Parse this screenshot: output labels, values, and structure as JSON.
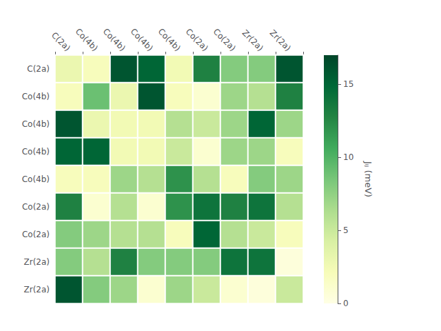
{
  "chart_data": {
    "type": "heatmap",
    "x_categories": [
      "C(2a)",
      "Co(4b)",
      "Co(4b)",
      "Co(4b)",
      "Co(4b)",
      "Co(2a)",
      "Co(2a)",
      "Zr(2a)",
      "Zr(2a)"
    ],
    "y_categories": [
      "C(2a)",
      "Co(4b)",
      "Co(4b)",
      "Co(4b)",
      "Co(4b)",
      "Co(2a)",
      "Co(2a)",
      "Zr(2a)",
      "Zr(2a)"
    ],
    "values": [
      [
        3.0,
        2.0,
        16.0,
        15.0,
        2.5,
        13.0,
        8.0,
        8.0,
        16.0
      ],
      [
        2.0,
        9.0,
        3.0,
        16.0,
        2.0,
        1.0,
        7.0,
        6.0,
        13.0
      ],
      [
        16.0,
        3.0,
        2.5,
        2.5,
        6.0,
        5.0,
        7.0,
        15.0,
        7.0
      ],
      [
        15.0,
        15.0,
        2.5,
        2.5,
        5.0,
        1.0,
        7.0,
        7.0,
        2.0
      ],
      [
        2.0,
        2.0,
        7.0,
        6.0,
        12.0,
        6.0,
        2.0,
        8.0,
        7.0
      ],
      [
        13.0,
        1.0,
        6.0,
        1.0,
        12.0,
        14.0,
        13.0,
        14.0,
        6.0
      ],
      [
        8.0,
        7.0,
        6.0,
        6.0,
        2.0,
        15.0,
        6.0,
        5.0,
        2.0
      ],
      [
        8.0,
        6.0,
        13.0,
        8.0,
        8.0,
        8.0,
        14.0,
        14.0,
        0.5
      ],
      [
        16.0,
        8.0,
        7.0,
        1.0,
        7.0,
        5.0,
        1.0,
        0.5,
        5.0
      ]
    ],
    "colorbar_label": "Jᵢⱼ (meV)",
    "colorbar_range": [
      0,
      17
    ],
    "colorbar_ticks": [
      0,
      5,
      10,
      15
    ]
  }
}
